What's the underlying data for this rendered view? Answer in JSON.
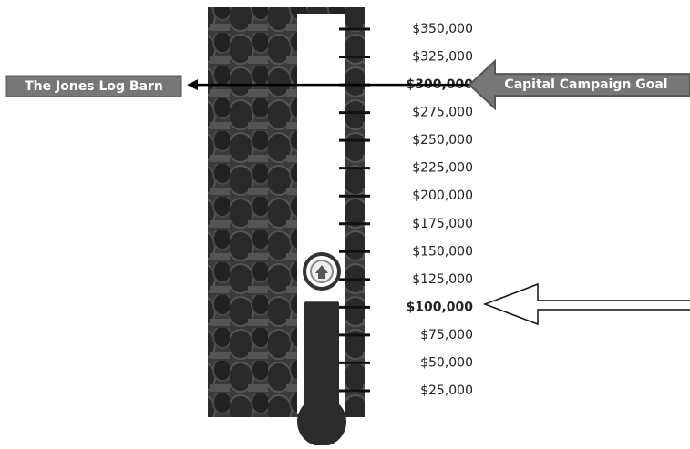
{
  "chart_data": {
    "type": "thermometer",
    "values": [
      105000
    ],
    "color": "#2b2b2b",
    "goal": 300000,
    "annotations": [
      "The Jones Log Barn",
      "Capital Campaign Goal"
    ],
    "ylim": [
      0,
      350000
    ],
    "yticks": [
      {
        "value": 350000,
        "label": "$350,000"
      },
      {
        "value": 325000,
        "label": "$325,000"
      },
      {
        "value": 300000,
        "label": "$300,000",
        "bold": true
      },
      {
        "value": 275000,
        "label": "$275,000"
      },
      {
        "value": 250000,
        "label": "$250,000"
      },
      {
        "value": 225000,
        "label": "$225,000"
      },
      {
        "value": 200000,
        "label": "$200,000"
      },
      {
        "value": 175000,
        "label": "$175,000"
      },
      {
        "value": 150000,
        "label": "$150,000"
      },
      {
        "value": 125000,
        "label": "$125,000"
      },
      {
        "value": 100000,
        "label": "$100,000",
        "bold": true
      },
      {
        "value": 75000,
        "label": "$75,000"
      },
      {
        "value": 50000,
        "label": "$50,000"
      },
      {
        "value": 25000,
        "label": "$25,000"
      }
    ]
  }
}
